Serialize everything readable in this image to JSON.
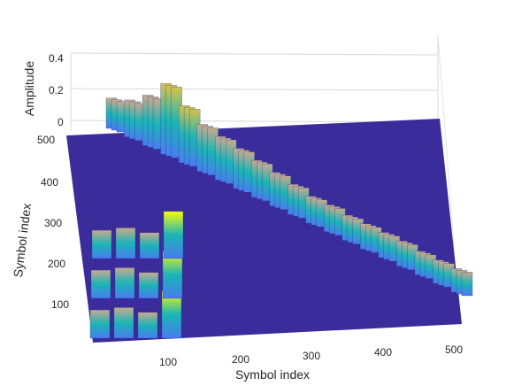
{
  "chart_data": {
    "type": "surface",
    "x": {
      "label": "Symbol index",
      "range": [
        1,
        512
      ],
      "ticks": [
        100,
        200,
        300,
        400,
        500
      ]
    },
    "y": {
      "label": "Symbol index",
      "range": [
        1,
        512
      ],
      "ticks": [
        100,
        200,
        300,
        400,
        500
      ]
    },
    "z": {
      "label": "Amplitude",
      "range": [
        0,
        0.45
      ],
      "ticks": [
        0,
        0.2,
        0.4
      ]
    },
    "grid": true,
    "colormap": "parula",
    "colors": {
      "background_surface": "#3a2d9b",
      "low": "#4a7bf0",
      "mid": "#1ab5b5",
      "high": "#f9fb0e"
    },
    "blocks": [
      {
        "row": 0,
        "peak": 0.18
      },
      {
        "row": 0,
        "peak": 0.22
      },
      {
        "row": 0,
        "peak": 0.3
      },
      {
        "row": 0,
        "peak": 0.42
      },
      {
        "row": 0,
        "peak": 0.34
      },
      {
        "row": 0,
        "peak": 0.28
      },
      {
        "row": 0,
        "peak": 0.26
      },
      {
        "row": 0,
        "peak": 0.24
      },
      {
        "row": 0,
        "peak": 0.22
      },
      {
        "row": 0,
        "peak": 0.2
      },
      {
        "row": 0,
        "peak": 0.18
      },
      {
        "row": 0,
        "peak": 0.16
      },
      {
        "row": 0,
        "peak": 0.16
      },
      {
        "row": 0,
        "peak": 0.15
      },
      {
        "row": 0,
        "peak": 0.15
      },
      {
        "row": 0,
        "peak": 0.15
      },
      {
        "row": 0,
        "peak": 0.15
      },
      {
        "row": 0,
        "peak": 0.14
      },
      {
        "row": 0,
        "peak": 0.14
      },
      {
        "row": 0,
        "peak": 0.14
      }
    ]
  }
}
